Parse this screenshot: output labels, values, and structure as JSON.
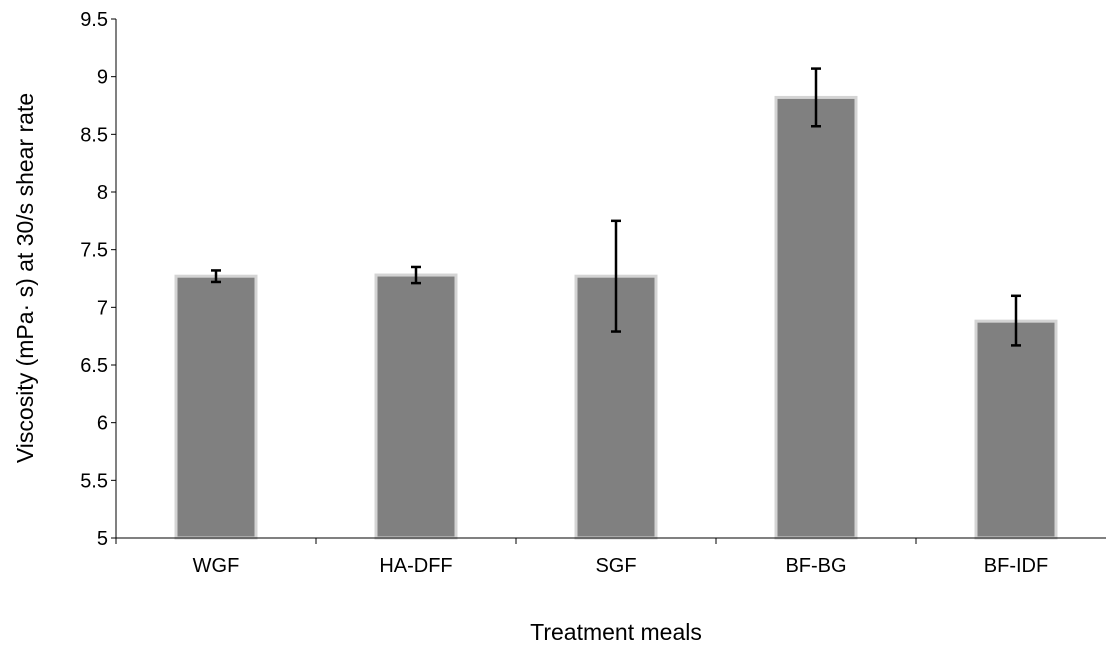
{
  "chart_data": {
    "type": "bar",
    "title": "",
    "xlabel": "Treatment meals",
    "ylabel": "Viscosity (mPa· s) at 30/s shear rate",
    "categories": [
      "WGF",
      "HA-DFF",
      "SGF",
      "BF-BG",
      "BF-IDF"
    ],
    "series": [
      {
        "values": [
          7.27,
          7.28,
          7.27,
          8.82,
          6.88
        ],
        "error_low": [
          7.22,
          7.21,
          6.79,
          8.57,
          6.67
        ],
        "error_high": [
          7.32,
          7.35,
          7.75,
          9.07,
          7.1
        ]
      }
    ],
    "ylim": [
      5,
      9.5
    ],
    "y_ticks": [
      "5",
      "5.5",
      "6",
      "6.5",
      "7",
      "7.5",
      "8",
      "8.5",
      "9",
      "9.5"
    ],
    "grid": false,
    "legend": "none",
    "colors": {
      "bar_fill": "#808080",
      "bar_stroke": "#d4d4d4",
      "axis": "#000000",
      "error_bar": "#000000"
    }
  }
}
